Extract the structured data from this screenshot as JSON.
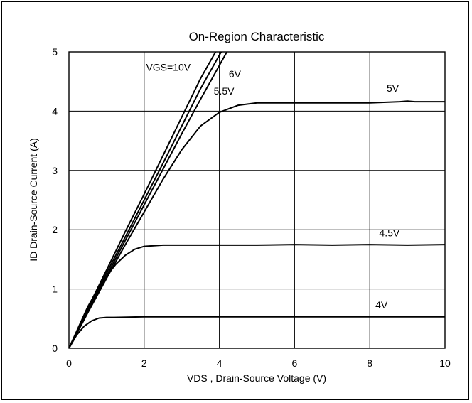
{
  "chart_data": {
    "type": "line",
    "title": "On-Region Characteristic",
    "xlabel": "VDS , Drain-Source Voltage (V)",
    "ylabel": "ID Drain-Source Current (A)",
    "xlim": [
      0,
      10
    ],
    "ylim": [
      0,
      5
    ],
    "xticks": [
      0,
      2,
      4,
      6,
      8,
      10
    ],
    "yticks": [
      0,
      1,
      2,
      3,
      4,
      5
    ],
    "xtick_labels": [
      "0",
      "2",
      "4",
      "6",
      "8",
      "10"
    ],
    "ytick_labels": [
      "0",
      "1",
      "2",
      "3",
      "4",
      "5"
    ],
    "grid": true,
    "series": [
      {
        "name": "VGS=10V",
        "label": "VGS=10V",
        "x": [
          0,
          0.5,
          1,
          1.5,
          2,
          2.5,
          3,
          3.5,
          3.9
        ],
        "y": [
          0,
          0.68,
          1.32,
          1.97,
          2.6,
          3.25,
          3.9,
          4.55,
          5.0
        ]
      },
      {
        "name": "6V",
        "label": "6V",
        "x": [
          0,
          0.5,
          1,
          1.5,
          2,
          2.5,
          3,
          3.5,
          4.05
        ],
        "y": [
          0,
          0.65,
          1.27,
          1.88,
          2.5,
          3.12,
          3.75,
          4.38,
          5.0
        ]
      },
      {
        "name": "5.5V",
        "label": "5.5V",
        "x": [
          0,
          0.5,
          1,
          1.5,
          2,
          2.5,
          3,
          3.5,
          4.2
        ],
        "y": [
          0,
          0.62,
          1.22,
          1.82,
          2.42,
          3.02,
          3.62,
          4.2,
          5.0
        ]
      },
      {
        "name": "5V",
        "label": "5V",
        "x": [
          0,
          0.5,
          1,
          1.5,
          2,
          2.5,
          3,
          3.5,
          4,
          4.5,
          5,
          6,
          7,
          8,
          8.8,
          9,
          9.2,
          10
        ],
        "y": [
          0,
          0.6,
          1.18,
          1.75,
          2.3,
          2.85,
          3.35,
          3.75,
          3.98,
          4.1,
          4.14,
          4.14,
          4.14,
          4.14,
          4.16,
          4.17,
          4.16,
          4.16
        ]
      },
      {
        "name": "4.5V",
        "label": "4.5V",
        "x": [
          0,
          0.25,
          0.5,
          0.75,
          1,
          1.25,
          1.5,
          1.75,
          2,
          2.5,
          3,
          4,
          5,
          6,
          7,
          8,
          9,
          10
        ],
        "y": [
          0,
          0.35,
          0.7,
          0.98,
          1.22,
          1.42,
          1.57,
          1.67,
          1.72,
          1.74,
          1.74,
          1.74,
          1.74,
          1.75,
          1.74,
          1.75,
          1.74,
          1.75
        ]
      },
      {
        "name": "4V",
        "label": "4V",
        "x": [
          0,
          0.2,
          0.4,
          0.6,
          0.8,
          1,
          1.2,
          2,
          4,
          6,
          8,
          10
        ],
        "y": [
          0,
          0.22,
          0.37,
          0.46,
          0.51,
          0.52,
          0.52,
          0.53,
          0.53,
          0.53,
          0.53,
          0.53
        ]
      }
    ]
  }
}
